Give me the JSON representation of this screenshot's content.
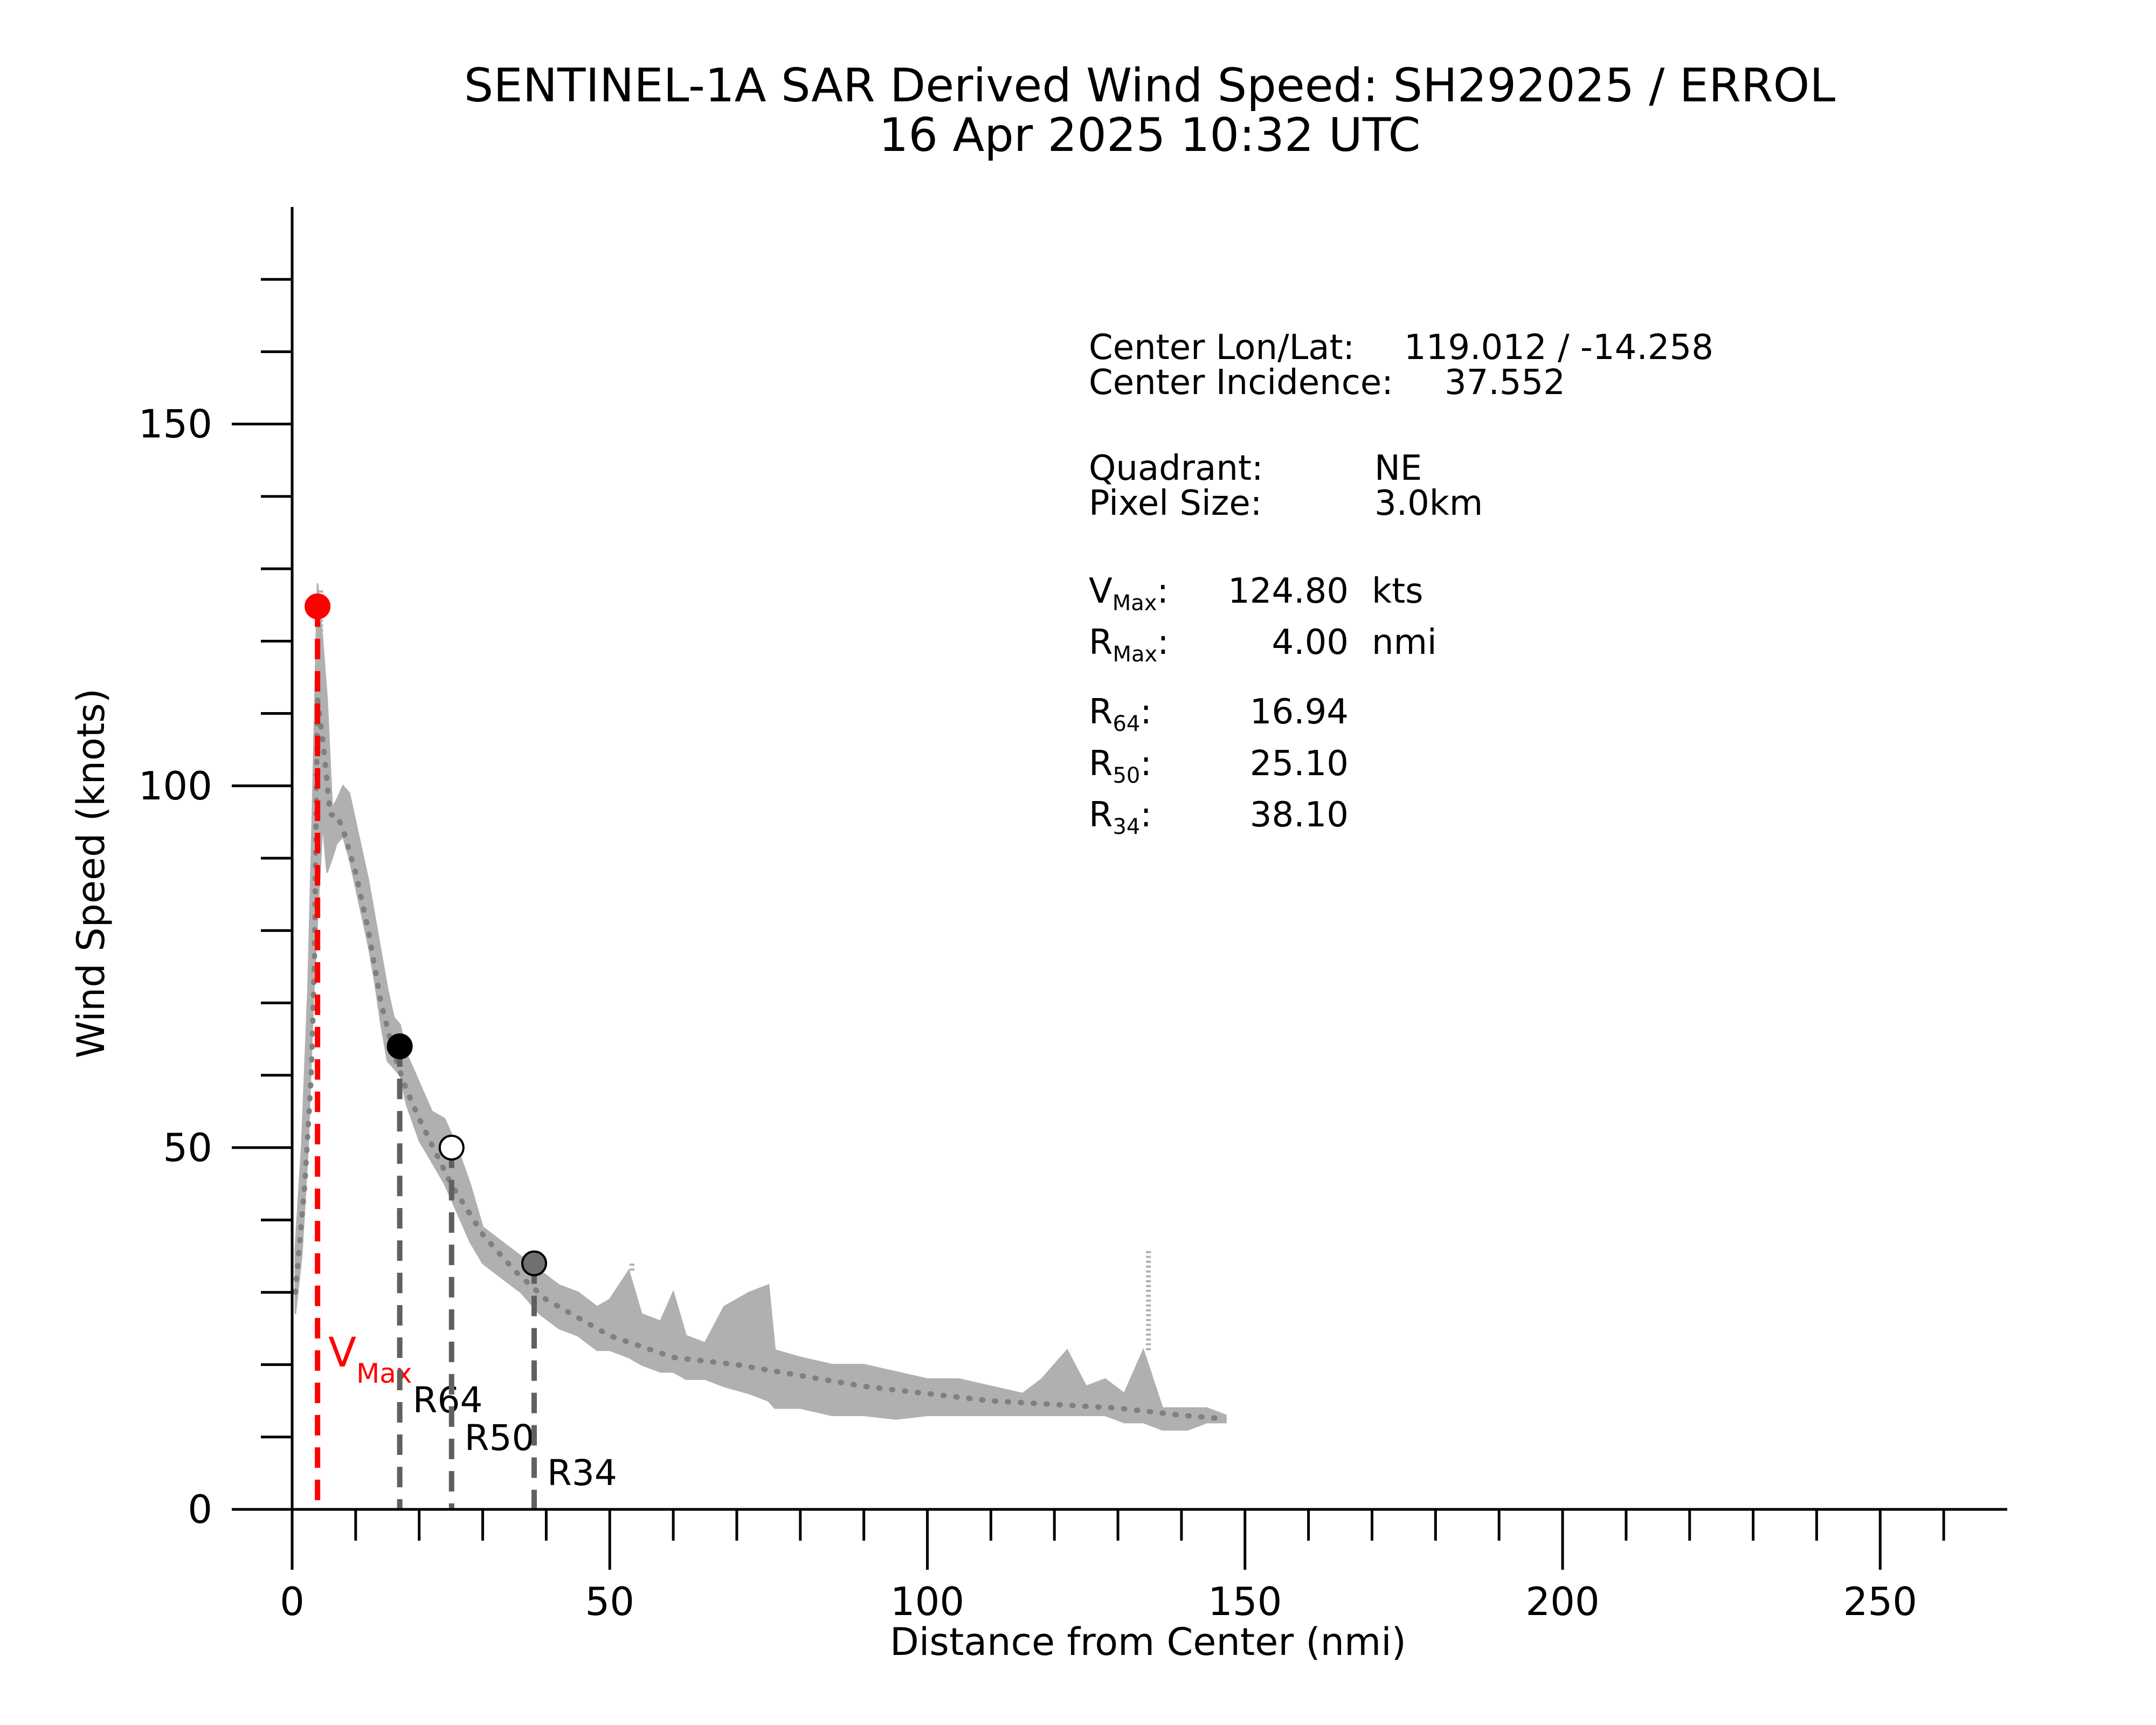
{
  "chart_data": {
    "type": "scatter",
    "title": "SENTINEL-1A SAR Derived Wind Speed: SH292025 / ERROL",
    "subtitle": "16 Apr 2025 10:32 UTC",
    "xlabel": "Distance from Center (nmi)",
    "ylabel": "Wind Speed (knots)",
    "xlim": [
      0,
      270
    ],
    "ylim": [
      0,
      180
    ],
    "x_ticks": [
      0,
      50,
      100,
      150,
      200,
      250
    ],
    "y_ticks": [
      0,
      50,
      100,
      150
    ],
    "grid": false,
    "series": [
      {
        "color": "#b0b0b0",
        "band": [
          {
            "x": 0.5,
            "lo": 27,
            "hi": 36
          },
          {
            "x": 1.5,
            "lo": 35,
            "hi": 50
          },
          {
            "x": 2.5,
            "lo": 50,
            "hi": 72
          },
          {
            "x": 3.3,
            "lo": 70,
            "hi": 100
          },
          {
            "x": 4.0,
            "lo": 82,
            "hi": 128
          },
          {
            "x": 4.8,
            "lo": 95,
            "hi": 120
          },
          {
            "x": 5.5,
            "lo": 88,
            "hi": 112
          },
          {
            "x": 6.3,
            "lo": 90,
            "hi": 97
          },
          {
            "x": 7.0,
            "lo": 92,
            "hi": 98
          },
          {
            "x": 8.0,
            "lo": 93,
            "hi": 100
          },
          {
            "x": 9.0,
            "lo": 90,
            "hi": 99
          },
          {
            "x": 10.0,
            "lo": 86,
            "hi": 95
          },
          {
            "x": 11.0,
            "lo": 82,
            "hi": 91
          },
          {
            "x": 12.0,
            "lo": 78,
            "hi": 87
          },
          {
            "x": 13.0,
            "lo": 73,
            "hi": 82
          },
          {
            "x": 14.0,
            "lo": 67,
            "hi": 77
          },
          {
            "x": 15.0,
            "lo": 62,
            "hi": 72
          },
          {
            "x": 16.0,
            "lo": 61,
            "hi": 68
          },
          {
            "x": 17.0,
            "lo": 60,
            "hi": 67
          },
          {
            "x": 18.0,
            "lo": 56,
            "hi": 63
          },
          {
            "x": 20.0,
            "lo": 51,
            "hi": 59
          },
          {
            "x": 22.0,
            "lo": 48,
            "hi": 55
          },
          {
            "x": 24.0,
            "lo": 45,
            "hi": 54
          },
          {
            "x": 26.0,
            "lo": 41,
            "hi": 50
          },
          {
            "x": 28.0,
            "lo": 37,
            "hi": 45
          },
          {
            "x": 30.0,
            "lo": 34,
            "hi": 39
          },
          {
            "x": 33.0,
            "lo": 32,
            "hi": 37
          },
          {
            "x": 36.0,
            "lo": 30,
            "hi": 35
          },
          {
            "x": 39.0,
            "lo": 27,
            "hi": 33
          },
          {
            "x": 42.0,
            "lo": 25,
            "hi": 31
          },
          {
            "x": 45.0,
            "lo": 24,
            "hi": 30
          },
          {
            "x": 48.0,
            "lo": 22,
            "hi": 28
          },
          {
            "x": 50.0,
            "lo": 22,
            "hi": 29
          },
          {
            "x": 53.0,
            "lo": 21,
            "hi": 33
          },
          {
            "x": 55.0,
            "lo": 20,
            "hi": 27
          },
          {
            "x": 58.0,
            "lo": 19,
            "hi": 26
          },
          {
            "x": 60.0,
            "lo": 19,
            "hi": 30
          },
          {
            "x": 62.0,
            "lo": 18,
            "hi": 24
          },
          {
            "x": 65.0,
            "lo": 18,
            "hi": 23
          },
          {
            "x": 68.0,
            "lo": 17,
            "hi": 28
          },
          {
            "x": 72.0,
            "lo": 16,
            "hi": 30
          },
          {
            "x": 75.0,
            "lo": 15,
            "hi": 31
          },
          {
            "x": 76.0,
            "lo": 14,
            "hi": 22
          },
          {
            "x": 80.0,
            "lo": 14,
            "hi": 21
          },
          {
            "x": 85.0,
            "lo": 13,
            "hi": 20
          },
          {
            "x": 90.0,
            "lo": 13,
            "hi": 20
          },
          {
            "x": 95.0,
            "lo": 12.5,
            "hi": 19
          },
          {
            "x": 100.0,
            "lo": 13,
            "hi": 18
          },
          {
            "x": 105.0,
            "lo": 13,
            "hi": 18
          },
          {
            "x": 110.0,
            "lo": 13,
            "hi": 17
          },
          {
            "x": 115.0,
            "lo": 13,
            "hi": 16
          },
          {
            "x": 118.0,
            "lo": 13,
            "hi": 18
          },
          {
            "x": 122.0,
            "lo": 13,
            "hi": 22
          },
          {
            "x": 125.0,
            "lo": 13,
            "hi": 17
          },
          {
            "x": 128.0,
            "lo": 13,
            "hi": 18
          },
          {
            "x": 131.0,
            "lo": 12,
            "hi": 16
          },
          {
            "x": 134.0,
            "lo": 12,
            "hi": 22
          },
          {
            "x": 137.0,
            "lo": 11,
            "hi": 14
          },
          {
            "x": 141.0,
            "lo": 11,
            "hi": 14
          },
          {
            "x": 144.0,
            "lo": 12,
            "hi": 14
          },
          {
            "x": 147.0,
            "lo": 12,
            "hi": 13
          }
        ],
        "spikes": [
          {
            "x": 4.5,
            "y": 127
          },
          {
            "x": 134.8,
            "y": 36
          },
          {
            "x": 122.5,
            "y": 22
          },
          {
            "x": 53.5,
            "y": 34
          }
        ]
      },
      {
        "color": "#808080",
        "style": "dotted",
        "x": [
          0.5,
          2,
          3,
          3.5,
          4,
          5,
          6,
          7,
          8,
          10,
          12,
          14,
          16,
          18,
          20,
          25,
          30,
          35,
          40,
          50,
          60,
          70,
          80,
          90,
          100,
          110,
          120,
          130,
          140,
          147
        ],
        "values": [
          30,
          45,
          60,
          75,
          112,
          105,
          96,
          96,
          94,
          88,
          80,
          70,
          63,
          58,
          54,
          45,
          38,
          33,
          29,
          24,
          21,
          20,
          18.5,
          17,
          16,
          15,
          14.5,
          14,
          13,
          12.5
        ]
      }
    ],
    "markers": [
      {
        "x": 4.0,
        "y": 124.8,
        "color": "#ff0000"
      },
      {
        "x": 16.94,
        "y": 64,
        "color": "#000000"
      },
      {
        "x": 25.1,
        "y": 50,
        "color": "#ffffff"
      },
      {
        "x": 38.1,
        "y": 34,
        "color": "#707070"
      }
    ],
    "vlines": [
      {
        "x": 4.0,
        "color": "#ff0000",
        "label": "V",
        "sub": "Max"
      },
      {
        "x": 16.94,
        "color": "#606060",
        "label": "R64"
      },
      {
        "x": 25.1,
        "color": "#606060",
        "label": "R50"
      },
      {
        "x": 38.1,
        "color": "#606060",
        "label": "R34"
      }
    ],
    "info": {
      "center_lonlat_label": "Center Lon/Lat:",
      "center_lonlat_value": "119.012 / -14.258",
      "center_incidence_label": "Center Incidence:",
      "center_incidence_value": "37.552",
      "quadrant_label": "Quadrant:",
      "quadrant_value": "NE",
      "pixel_size_label": "Pixel Size:",
      "pixel_size_value": "3.0km",
      "vmax_label": "V",
      "vmax_sub": "Max",
      "vmax_value": "124.80",
      "vmax_unit": "kts",
      "rmax_label": "R",
      "rmax_sub": "Max",
      "rmax_value": "4.00",
      "rmax_unit": "nmi",
      "r64_label": "R",
      "r64_sub": "64",
      "r64_value": "16.94",
      "r50_label": "R",
      "r50_sub": "50",
      "r50_value": "25.10",
      "r34_label": "R",
      "r34_sub": "34",
      "r34_value": "38.10"
    }
  }
}
